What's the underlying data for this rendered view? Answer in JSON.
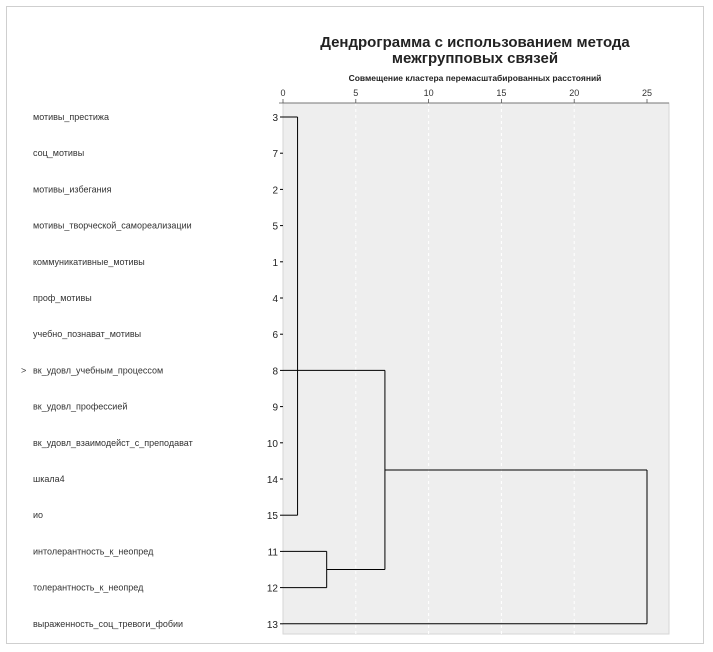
{
  "chart_data": {
    "type": "dendrogram",
    "title_line1": "Дендрограмма с использованием метода",
    "title_line2": "межгрупповых связей",
    "subtitle": "Совмещение кластера перемасштабированных расстояний",
    "xlim": [
      0,
      25
    ],
    "x_ticks": [
      "0",
      "5",
      "10",
      "15",
      "20",
      "25"
    ],
    "leaves": [
      {
        "label": "мотивы_престижа",
        "case": "3"
      },
      {
        "label": "соц_мотивы",
        "case": "7"
      },
      {
        "label": "мотивы_избегания",
        "case": "2"
      },
      {
        "label": "мотивы_творческой_самореализации",
        "case": "5"
      },
      {
        "label": "коммуникативные_мотивы",
        "case": "1"
      },
      {
        "label": "проф_мотивы",
        "case": "4"
      },
      {
        "label": "учебно_познават_мотивы",
        "case": "6"
      },
      {
        "label": "вк_удовл_учебным_процессом",
        "case": "8"
      },
      {
        "label": "вк_удовл_профессией",
        "case": "9"
      },
      {
        "label": "вк_удовл_взаимодейст_с_преподават",
        "case": "10"
      },
      {
        "label": "шкала4",
        "case": "14"
      },
      {
        "label": "ио",
        "case": "15"
      },
      {
        "label": "интолерантность_к_неопред",
        "case": "11"
      },
      {
        "label": "толерантность_к_неопред",
        "case": "12"
      },
      {
        "label": "выраженность_соц_тревоги_фобии",
        "case": "13"
      }
    ],
    "merges": [
      {
        "rows": [
          0,
          11
        ],
        "height": 1.0
      },
      {
        "rows": [
          12,
          13
        ],
        "height": 3.0
      },
      {
        "rows": [
          7,
          12.5
        ],
        "height": 7.0
      },
      {
        "rows": [
          9.75,
          14
        ],
        "height": 25.0
      }
    ],
    "colors": {
      "plot_bg": "#eeeeee",
      "line": "#000000",
      "gridline": "#ffffff",
      "axis": "#555555"
    }
  }
}
